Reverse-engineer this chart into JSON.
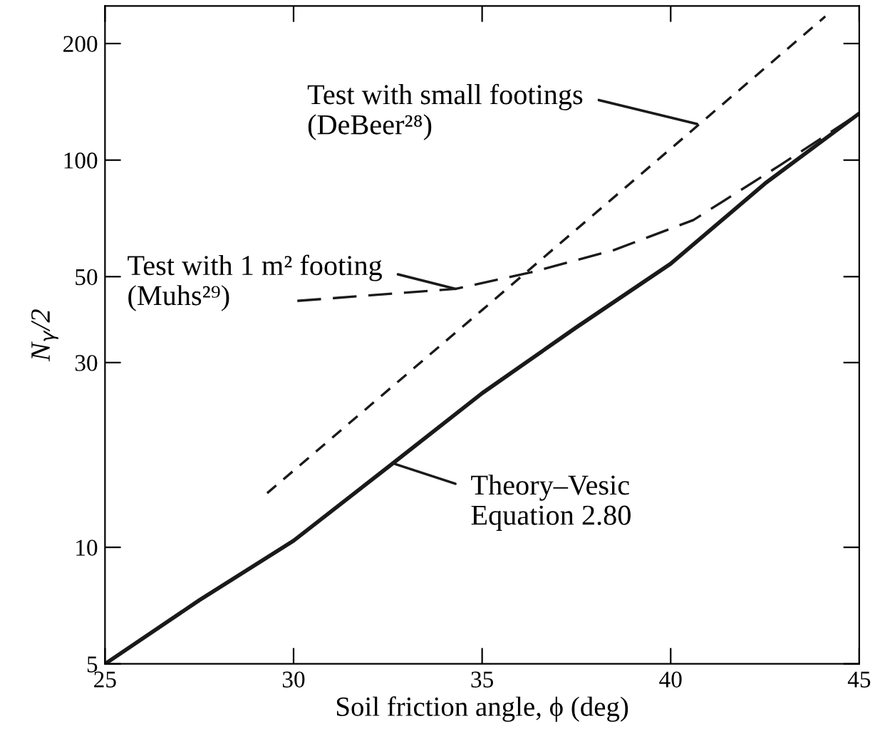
{
  "chart_data": {
    "type": "line",
    "xlabel": "Soil friction angle, ϕ (deg)",
    "ylabel": "N$_{γ}$/2",
    "log": "y",
    "xlim": [
      25,
      45
    ],
    "xticks": [
      25,
      30,
      35,
      40,
      45
    ],
    "ylim": [
      5,
      250
    ],
    "yticks": [
      5,
      10,
      30,
      50,
      100,
      200
    ],
    "grid": false,
    "legend": false,
    "marker": "none",
    "series": [
      {
        "color": "#1a1a1a",
        "line_style": "solid",
        "x": [
          25,
          27.5,
          30,
          32.5,
          35,
          37.5,
          40,
          42.5,
          45
        ],
        "values": [
          5,
          7.3,
          10.4,
          16.1,
          25,
          37,
          54,
          87,
          132
        ]
      },
      {
        "color": "#1a1a1a",
        "line_style": "dashed",
        "x": [
          29.3,
          35,
          40,
          44.1
        ],
        "values": [
          13.8,
          41,
          107,
          235
        ]
      },
      {
        "color": "#1a1a1a",
        "line_style": "dashed",
        "x": [
          30.1,
          34.3,
          36.3,
          38.5,
          40.6,
          42.9,
          45
        ],
        "values": [
          43.3,
          46.5,
          51.3,
          58.6,
          70,
          97,
          132
        ]
      }
    ],
    "annotations": [
      {
        "text": "Test with small footings\n(DeBeer²⁸)",
        "x": 40.7,
        "y": 124
      },
      {
        "text": "Test with 1 m² footing\n(Muhs²⁹)",
        "x": 34.3,
        "y": 46.5
      },
      {
        "text": "Theory–Vesic\nEquation 2.80",
        "x": 32.7,
        "y": 16.4
      }
    ]
  }
}
